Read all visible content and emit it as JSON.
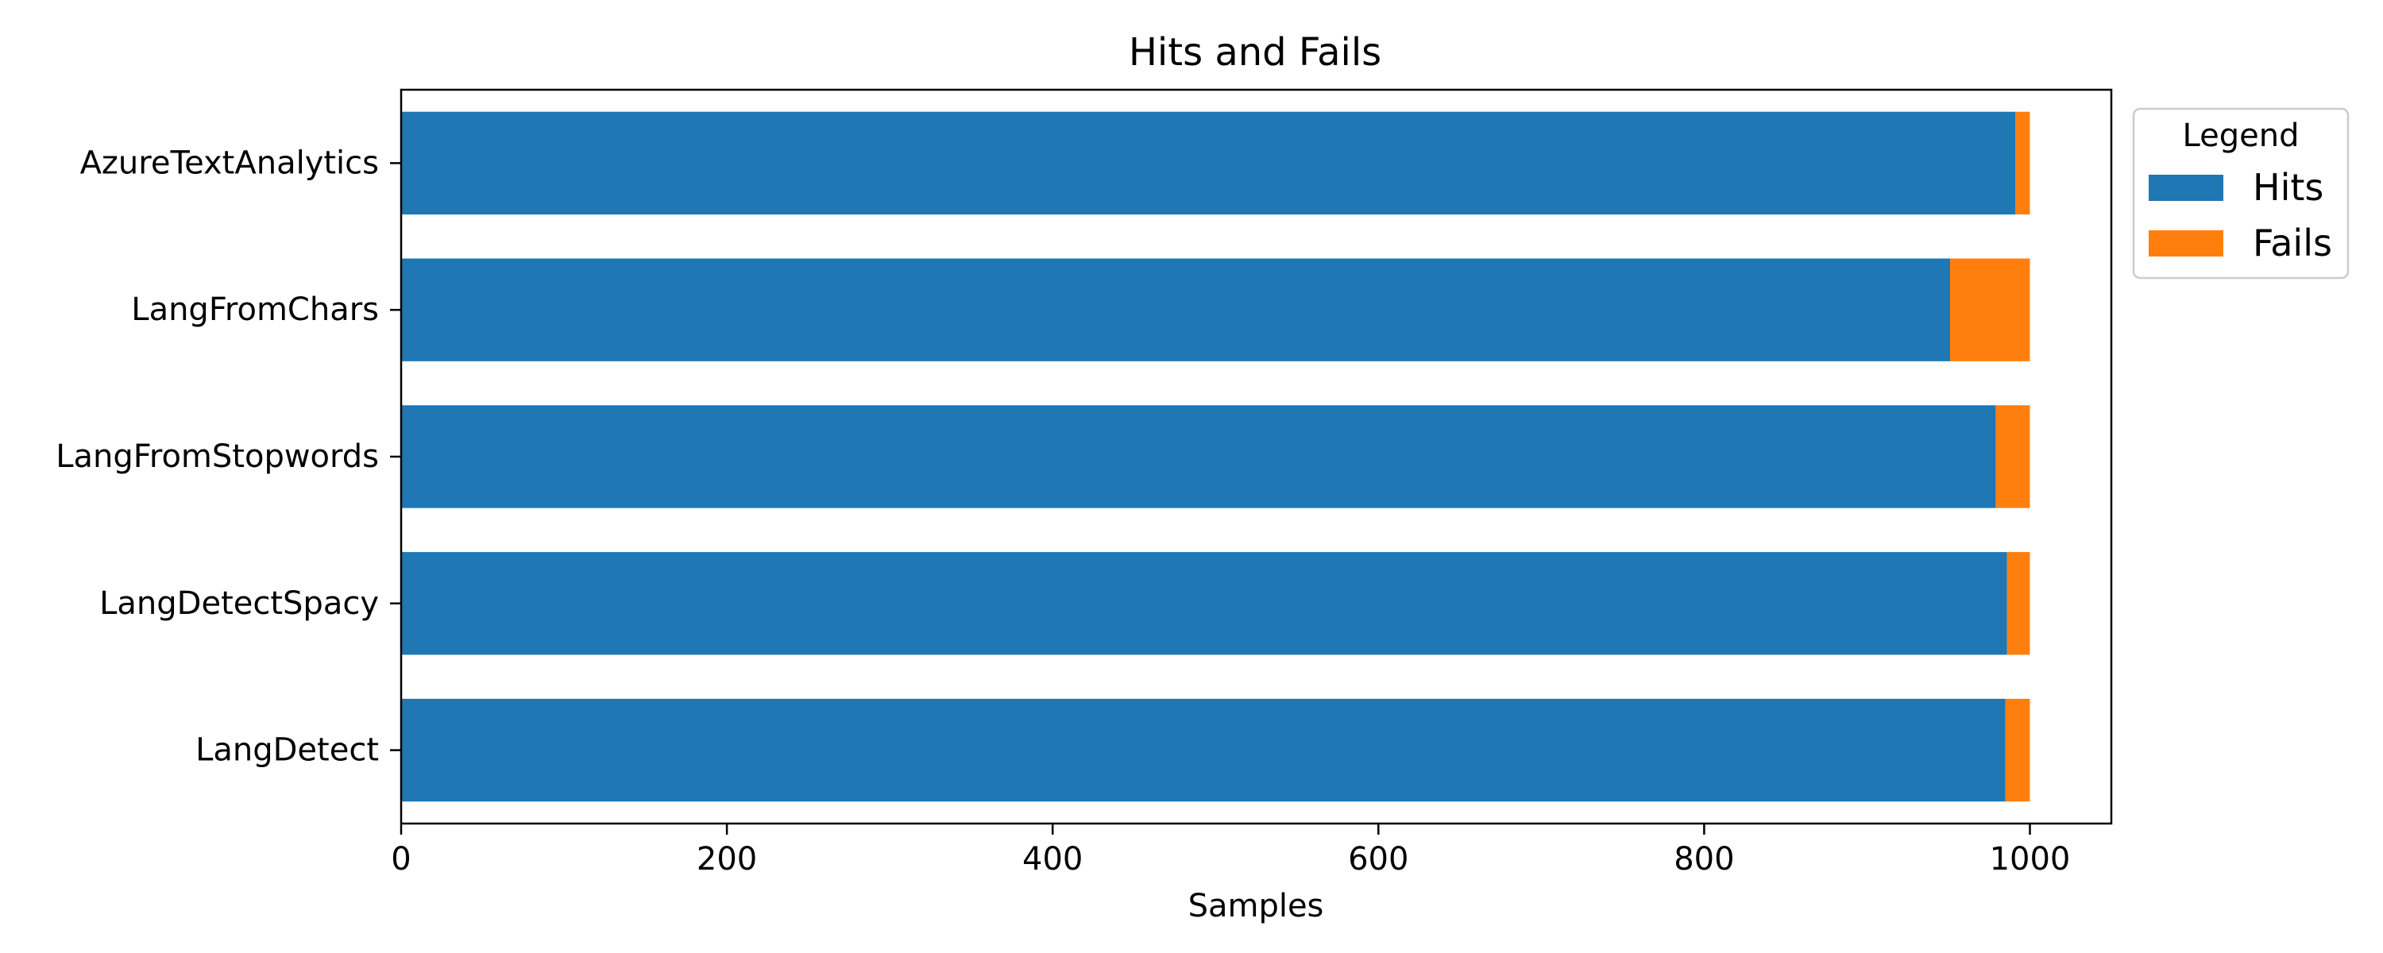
{
  "chart_data": {
    "type": "bar",
    "orientation": "horizontal",
    "stacked": true,
    "title": "Hits and Fails",
    "xlabel": "Samples",
    "ylabel": "",
    "xlim": [
      0,
      1050
    ],
    "xticks": [
      0,
      200,
      400,
      600,
      800,
      1000
    ],
    "grid": false,
    "legend": {
      "title": "Legend",
      "placement": "outside upper right"
    },
    "categories": [
      "AzureTextAnalytics",
      "LangFromChars",
      "LangFromStopwords",
      "LangDetectSpacy",
      "LangDetect"
    ],
    "series": [
      {
        "name": "Hits",
        "color": "#1f77b4",
        "values": [
          991,
          951,
          979,
          986,
          985
        ]
      },
      {
        "name": "Fails",
        "color": "#ff7f0e",
        "values": [
          9,
          49,
          21,
          14,
          15
        ]
      }
    ]
  }
}
